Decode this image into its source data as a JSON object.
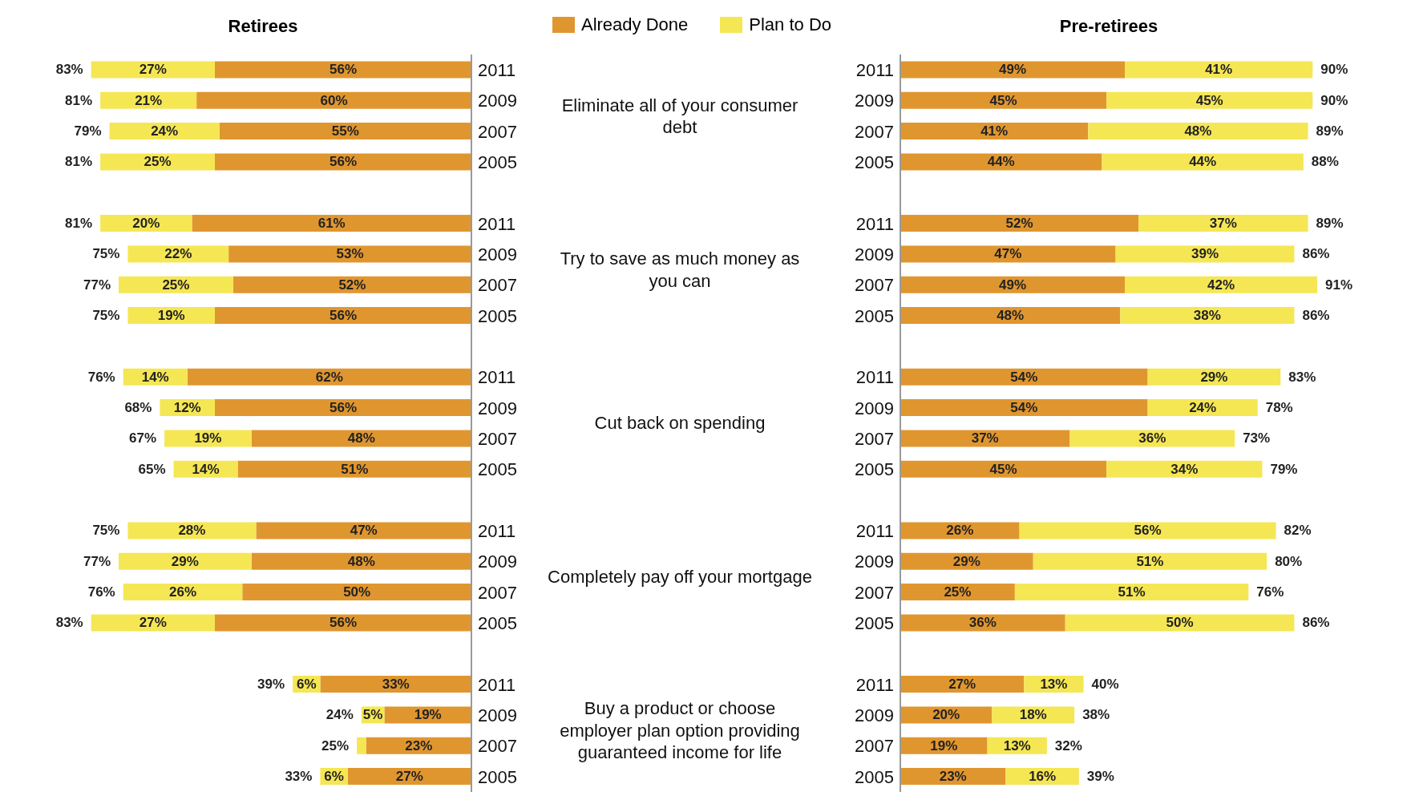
{
  "chart_data": [
    {
      "type": "bar",
      "orientation": "horizontal",
      "stacked": true,
      "title": "Retirees",
      "legend": "top right",
      "categories": [
        "2011",
        "2009",
        "2007",
        "2005",
        null,
        "2011",
        "2009",
        "2007",
        "2005",
        null,
        "2011",
        "2009",
        "2007",
        "2005",
        null,
        "2011",
        "2009",
        "2007",
        "2005",
        null,
        "2011",
        "2009",
        "2007",
        "2005"
      ],
      "series": [
        {
          "name": "Already Done",
          "color": "#e0962f",
          "values": [
            56,
            60,
            55,
            56,
            null,
            61,
            53,
            52,
            56,
            null,
            62,
            56,
            48,
            51,
            null,
            47,
            48,
            50,
            56,
            null,
            33,
            19,
            23,
            27
          ],
          "value_labels": [
            "56%",
            "60%",
            "55%",
            "56%",
            null,
            "61%",
            "53%",
            "52%",
            "56%",
            null,
            "62%",
            "56%",
            "48%",
            "51%",
            null,
            "47%",
            "48%",
            "50%",
            "56%",
            null,
            "33%",
            "19%",
            "23%",
            "27%"
          ]
        },
        {
          "name": "Plan to Do",
          "color": "#f5e654",
          "values": [
            27,
            21,
            24,
            25,
            null,
            20,
            22,
            25,
            19,
            null,
            14,
            12,
            19,
            14,
            null,
            28,
            29,
            26,
            27,
            null,
            6,
            5,
            2,
            6
          ],
          "value_labels": [
            "27%",
            "21%",
            "24%",
            "25%",
            null,
            "20%",
            "22%",
            "25%",
            "19%",
            null,
            "14%",
            "12%",
            "19%",
            "14%",
            null,
            "28%",
            "29%",
            "26%",
            "27%",
            null,
            "6%",
            "5%",
            null,
            "6%"
          ]
        }
      ],
      "totals": [
        "83%",
        "81%",
        "79%",
        "81%",
        null,
        "81%",
        "75%",
        "77%",
        "75%",
        null,
        "76%",
        "68%",
        "67%",
        "65%",
        null,
        "75%",
        "77%",
        "76%",
        "83%",
        null,
        "39%",
        "24%",
        "25%",
        "33%"
      ],
      "annotations": [
        "Eliminate all of your consumer debt",
        "Try to save as much money as you can",
        "Cut back on spending",
        "Completely pay off your mortgage",
        "Buy a product or choose employer plan option providing guaranteed income for life"
      ]
    },
    {
      "type": "bar",
      "orientation": "horizontal",
      "stacked": true,
      "title": "Pre-retirees",
      "categories": [
        "2011",
        "2009",
        "2007",
        "2005",
        null,
        "2011",
        "2009",
        "2007",
        "2005",
        null,
        "2011",
        "2009",
        "2007",
        "2005",
        null,
        "2011",
        "2009",
        "2007",
        "2005",
        null,
        "2011",
        "2009",
        "2007",
        "2005"
      ],
      "series": [
        {
          "color": "#e0962f",
          "values": [
            49,
            45,
            41,
            44,
            null,
            52,
            47,
            49,
            48,
            null,
            54,
            54,
            37,
            45,
            null,
            26,
            29,
            25,
            36,
            null,
            27,
            20,
            19,
            23
          ],
          "value_labels": [
            "49%",
            "45%",
            "41%",
            "44%",
            null,
            "52%",
            "47%",
            "49%",
            "48%",
            null,
            "54%",
            "54%",
            "37%",
            "45%",
            null,
            "26%",
            "29%",
            "25%",
            "36%",
            null,
            "27%",
            "20%",
            "19%",
            "23%"
          ]
        },
        {
          "color": "#f5e654",
          "values": [
            41,
            45,
            48,
            44,
            null,
            37,
            39,
            42,
            38,
            null,
            29,
            24,
            36,
            34,
            null,
            56,
            51,
            51,
            50,
            null,
            13,
            18,
            13,
            16
          ],
          "value_labels": [
            "41%",
            "45%",
            "48%",
            "44%",
            null,
            "37%",
            "39%",
            "42%",
            "38%",
            null,
            "29%",
            "24%",
            "36%",
            "34%",
            null,
            "56%",
            "51%",
            "51%",
            "50%",
            null,
            "13%",
            "18%",
            "13%",
            "16%"
          ]
        }
      ],
      "totals": [
        "90%",
        "90%",
        "89%",
        "88%",
        null,
        "89%",
        "86%",
        "91%",
        "86%",
        null,
        "83%",
        "78%",
        "73%",
        "79%",
        null,
        "82%",
        "80%",
        "76%",
        "86%",
        null,
        "40%",
        "38%",
        "32%",
        "39%"
      ]
    }
  ]
}
